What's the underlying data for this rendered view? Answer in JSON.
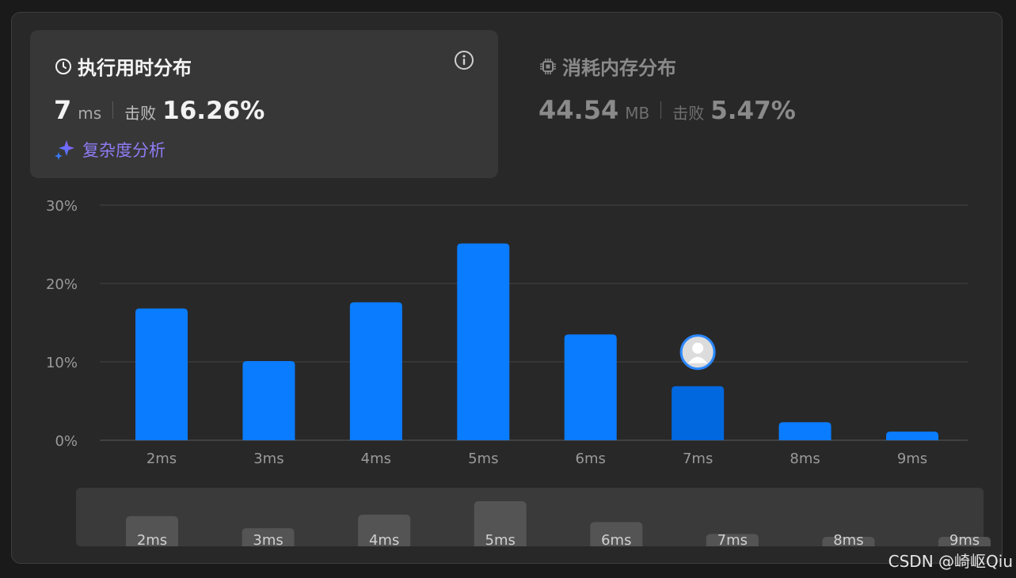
{
  "runtime": {
    "title": "执行用时分布",
    "value": "7",
    "unit": "ms",
    "beat_label": "击败",
    "beat_value": "16.26%",
    "complexity_label": "复杂度分析"
  },
  "memory": {
    "title": "消耗内存分布",
    "value": "44.54",
    "unit": "MB",
    "beat_label": "击败",
    "beat_value": "5.47%"
  },
  "chart_data": {
    "type": "bar",
    "categories": [
      "2ms",
      "3ms",
      "4ms",
      "5ms",
      "6ms",
      "7ms",
      "8ms",
      "9ms"
    ],
    "values": [
      16.8,
      10.1,
      17.6,
      25.1,
      13.5,
      6.9,
      2.3,
      1.1
    ],
    "highlight_category": "7ms",
    "ylim": [
      0,
      30
    ],
    "yticks": [
      "0%",
      "10%",
      "20%",
      "30%"
    ],
    "grid": true,
    "bar_color": "#0a7cff",
    "highlight_color": "#0268e0"
  },
  "navigator": {
    "labels": [
      "2ms",
      "3ms",
      "4ms",
      "5ms",
      "6ms",
      "7ms",
      "8ms",
      "9ms"
    ]
  },
  "watermark": "CSDN @崎岖Qiu"
}
